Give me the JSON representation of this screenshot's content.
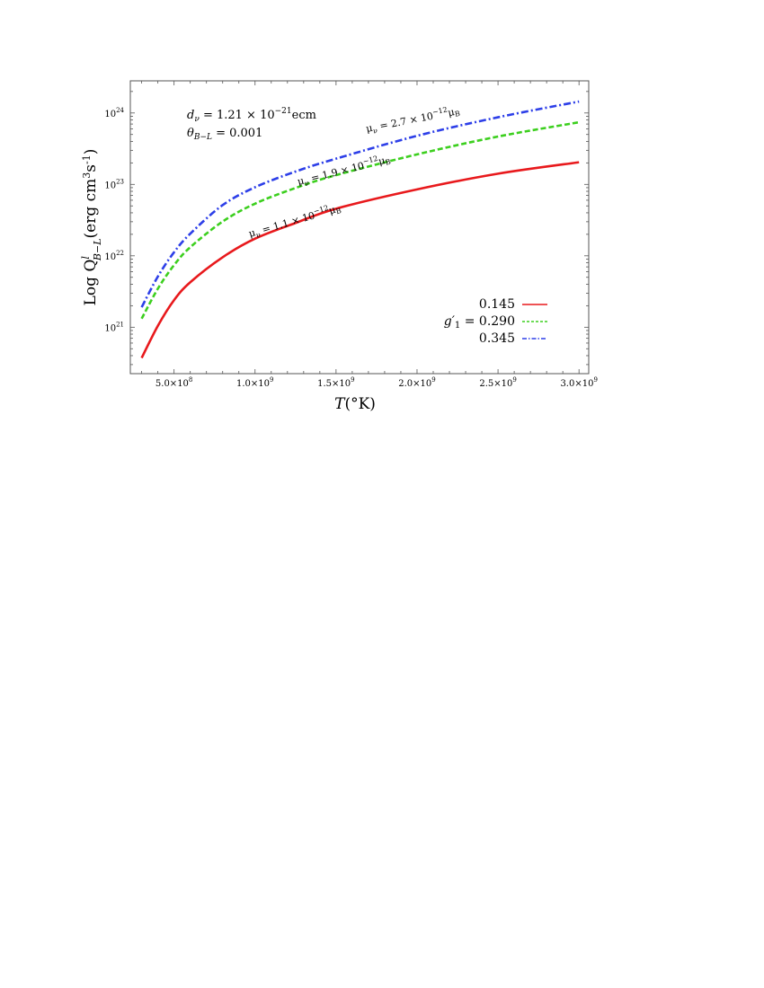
{
  "chart_data": {
    "type": "line",
    "xlabel": "T",
    "xlabel_unit": "(°K)",
    "ylabel": "Log Q",
    "ylabel_sup": "l",
    "ylabel_sub": "B−L",
    "ylabel_unit": "(erg cm",
    "ylabel_unit_sup": "3",
    "ylabel_unit_end": "s",
    "ylabel_unit_sup2": "-1",
    "ylabel_close": ")",
    "y_scale": "log",
    "xlim": [
      230000000,
      3060000000
    ],
    "ylim_log10": [
      20.35,
      24.45
    ],
    "x_ticks": [
      {
        "value": 500000000,
        "mant": "5.0",
        "exp": "8"
      },
      {
        "value": 1000000000,
        "mant": "1.0",
        "exp": "9"
      },
      {
        "value": 1500000000,
        "mant": "1.5",
        "exp": "9"
      },
      {
        "value": 2000000000,
        "mant": "2.0",
        "exp": "9"
      },
      {
        "value": 2500000000,
        "mant": "2.5",
        "exp": "9"
      },
      {
        "value": 3000000000,
        "mant": "3.0",
        "exp": "9"
      }
    ],
    "y_ticks": [
      {
        "log": 21,
        "base": "10",
        "exp": "21"
      },
      {
        "log": 22,
        "base": "10",
        "exp": "22"
      },
      {
        "log": 23,
        "base": "10",
        "exp": "23"
      },
      {
        "log": 24,
        "base": "10",
        "exp": "24"
      }
    ],
    "series": [
      {
        "legend_value": "0.145",
        "color": "#e8191c",
        "dash": "solid",
        "x": [
          300000000,
          400000000,
          500000000,
          600000000,
          800000000,
          1000000000,
          1250000000,
          1500000000,
          2000000000,
          2500000000,
          3000000000
        ],
        "log10_y": [
          20.57,
          21.02,
          21.38,
          21.63,
          21.98,
          22.24,
          22.46,
          22.66,
          22.93,
          23.15,
          23.31
        ]
      },
      {
        "legend_value": "0.290",
        "color": "#3ccf1e",
        "dash": "dashed",
        "x": [
          300000000,
          400000000,
          500000000,
          600000000,
          800000000,
          1000000000,
          1250000000,
          1500000000,
          2000000000,
          2500000000,
          3000000000
        ],
        "log10_y": [
          21.12,
          21.54,
          21.87,
          22.12,
          22.48,
          22.73,
          22.95,
          23.13,
          23.42,
          23.67,
          23.87
        ]
      },
      {
        "legend_value": "0.345",
        "color": "#2d3fe8",
        "dash": "dashdot",
        "x": [
          300000000,
          400000000,
          500000000,
          600000000,
          800000000,
          1000000000,
          1250000000,
          1500000000,
          2000000000,
          2500000000,
          3000000000
        ],
        "log10_y": [
          21.28,
          21.71,
          22.05,
          22.31,
          22.71,
          22.96,
          23.18,
          23.36,
          23.68,
          23.94,
          24.16
        ]
      }
    ],
    "legend_symbol": "g′",
    "legend_sub": "1",
    "legend_eq": " = ",
    "legend_placement": "bottom-right",
    "params": {
      "d_sym": "d",
      "d_sub": "ν",
      "d_eq": " = 1.21 × 10",
      "d_exp": "−21",
      "d_unit": "ecm",
      "theta_sym": "θ",
      "theta_sub": "B−L",
      "theta_eq": " = 0.001"
    },
    "curve_labels": [
      {
        "mu": "μ",
        "sub": "ν",
        "eq": " = 2.7 × 10",
        "exp": "−12",
        "unit": "μ",
        "unit_sub": "B"
      },
      {
        "mu": "μ",
        "sub": "ν",
        "eq": " = 1.9 × 10",
        "exp": "−12",
        "unit": "μ",
        "unit_sub": "B"
      },
      {
        "mu": "μ",
        "sub": "ν",
        "eq": " = 1.1 × 10",
        "exp": "−12",
        "unit": "μ",
        "unit_sub": "B"
      }
    ]
  }
}
